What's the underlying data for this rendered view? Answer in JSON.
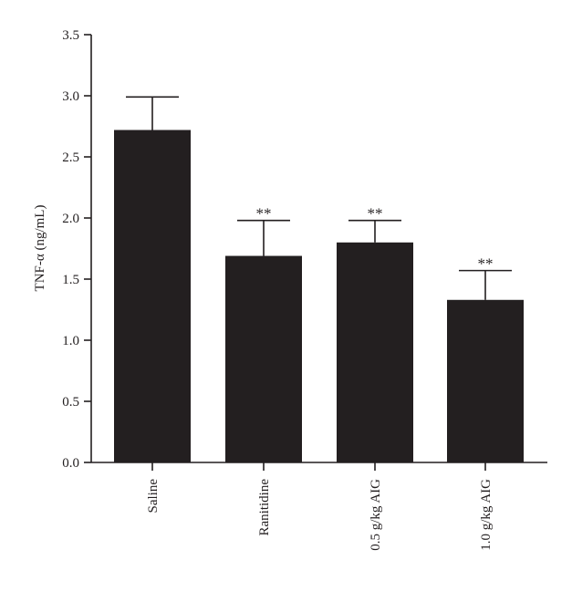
{
  "chart_data": {
    "type": "bar",
    "title": "",
    "xlabel": "",
    "ylabel": "TNF-α (ng/mL)",
    "ylim": [
      0,
      3.5
    ],
    "yticks": [
      "0.0",
      "0.5",
      "1.0",
      "1.5",
      "2.0",
      "2.5",
      "3.0",
      "3.5"
    ],
    "categories": [
      "Saline",
      "Ranitidine",
      "0.5 g/kg AIG",
      "1.0 g/kg AIG"
    ],
    "values": [
      2.72,
      1.69,
      1.8,
      1.33
    ],
    "errors": [
      0.27,
      0.29,
      0.18,
      0.24
    ],
    "significance": [
      "",
      "**",
      "**",
      "**"
    ],
    "bar_color": "#231f20",
    "grid": false,
    "legend": "none"
  }
}
